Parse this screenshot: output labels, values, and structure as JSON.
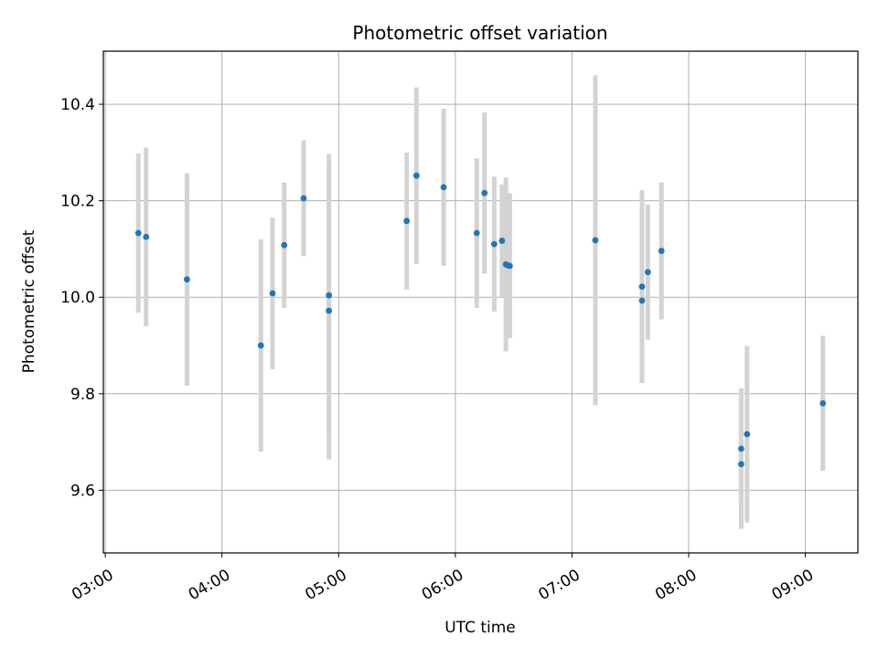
{
  "chart_data": {
    "type": "scatter",
    "title": "Photometric offset variation",
    "xlabel": "UTC time",
    "ylabel": "Photometric offset",
    "x_ticks": [
      "03:00",
      "04:00",
      "05:00",
      "06:00",
      "07:00",
      "08:00",
      "09:00"
    ],
    "y_ticks": [
      "9.6",
      "9.8",
      "10.0",
      "10.2",
      "10.4"
    ],
    "xlim": [
      "02:59",
      "09:27"
    ],
    "ylim": [
      9.47,
      10.51
    ],
    "grid": true,
    "point_color": "#1f77b4",
    "errorbar_color": "#d3d3d3",
    "points": [
      {
        "x": "03:17",
        "y": 10.133,
        "yerr": 0.165
      },
      {
        "x": "03:21",
        "y": 10.125,
        "yerr": 0.185
      },
      {
        "x": "03:42",
        "y": 10.037,
        "yerr": 0.22
      },
      {
        "x": "04:20",
        "y": 9.9,
        "yerr": 0.22
      },
      {
        "x": "04:26",
        "y": 10.008,
        "yerr": 0.157
      },
      {
        "x": "04:32",
        "y": 10.108,
        "yerr": 0.13
      },
      {
        "x": "04:42",
        "y": 10.205,
        "yerr": 0.12
      },
      {
        "x": "04:55",
        "y": 10.004,
        "yerr": 0.293
      },
      {
        "x": "04:55",
        "y": 9.972,
        "yerr": 0.308
      },
      {
        "x": "05:35",
        "y": 10.158,
        "yerr": 0.142
      },
      {
        "x": "05:40",
        "y": 10.252,
        "yerr": 0.183
      },
      {
        "x": "05:54",
        "y": 10.228,
        "yerr": 0.163
      },
      {
        "x": "06:11",
        "y": 10.133,
        "yerr": 0.155
      },
      {
        "x": "06:15",
        "y": 10.216,
        "yerr": 0.167
      },
      {
        "x": "06:20",
        "y": 10.11,
        "yerr": 0.14
      },
      {
        "x": "06:24",
        "y": 10.117,
        "yerr": 0.117
      },
      {
        "x": "06:26",
        "y": 10.068,
        "yerr": 0.18
      },
      {
        "x": "06:27",
        "y": 10.066,
        "yerr": 0.15
      },
      {
        "x": "06:28",
        "y": 10.065,
        "yerr": 0.15
      },
      {
        "x": "07:12",
        "y": 10.118,
        "yerr": 0.342
      },
      {
        "x": "07:36",
        "y": 10.022,
        "yerr": 0.2
      },
      {
        "x": "07:36",
        "y": 9.993,
        "yerr": 0.17
      },
      {
        "x": "07:39",
        "y": 10.052,
        "yerr": 0.14
      },
      {
        "x": "07:46",
        "y": 10.096,
        "yerr": 0.142
      },
      {
        "x": "08:27",
        "y": 9.686,
        "yerr": 0.125
      },
      {
        "x": "08:27",
        "y": 9.654,
        "yerr": 0.134
      },
      {
        "x": "08:30",
        "y": 9.716,
        "yerr": 0.183
      },
      {
        "x": "09:09",
        "y": 9.78,
        "yerr": 0.14
      }
    ]
  }
}
